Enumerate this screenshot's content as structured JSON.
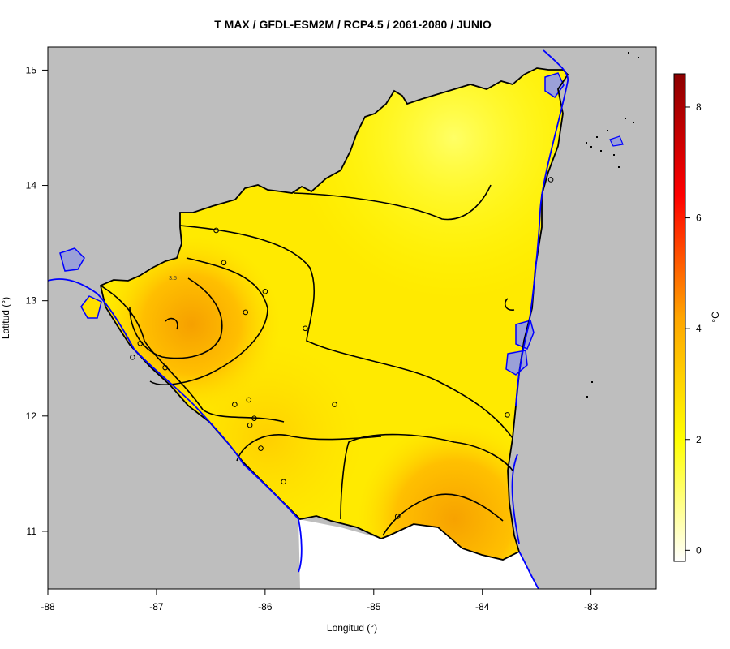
{
  "chart_data": {
    "type": "heatmap",
    "title": "T MAX / GFDL-ESM2M / RCP4.5 / 2061-2080 / JUNIO",
    "xlabel": "Longitud (°)",
    "ylabel": "Latitud (°)",
    "xlim": [
      -88,
      -82.4
    ],
    "ylim": [
      10.5,
      15.2
    ],
    "x_ticks": [
      "-88",
      "-87",
      "-86",
      "-85",
      "-84",
      "-83"
    ],
    "x_tick_values": [
      -88,
      -87,
      -86,
      -85,
      -84,
      -83
    ],
    "y_ticks": [
      "11",
      "12",
      "13",
      "14",
      "15"
    ],
    "y_tick_values": [
      11,
      12,
      13,
      14,
      15
    ],
    "colorbar": {
      "label": "°C",
      "range": [
        -0.2,
        8.6
      ],
      "ticks": [
        "0",
        "2",
        "4",
        "6",
        "8"
      ],
      "tick_values": [
        0,
        2,
        4,
        6,
        8
      ],
      "colors": [
        "#ffffff",
        "#ffff00",
        "#ffa500",
        "#ff0000",
        "#8b0000"
      ]
    },
    "contour_labels": [
      {
        "text": "3.5",
        "lon": -86.85,
        "lat": 13.18
      }
    ],
    "stations": [
      {
        "lon": -86.45,
        "lat": 13.61
      },
      {
        "lon": -86.38,
        "lat": 13.33
      },
      {
        "lon": -86.0,
        "lat": 13.08
      },
      {
        "lon": -86.18,
        "lat": 12.9
      },
      {
        "lon": -85.63,
        "lat": 12.76
      },
      {
        "lon": -87.15,
        "lat": 12.63
      },
      {
        "lon": -87.22,
        "lat": 12.51
      },
      {
        "lon": -86.92,
        "lat": 12.42
      },
      {
        "lon": -86.28,
        "lat": 12.1
      },
      {
        "lon": -86.15,
        "lat": 12.14
      },
      {
        "lon": -85.36,
        "lat": 12.1
      },
      {
        "lon": -86.1,
        "lat": 11.98
      },
      {
        "lon": -86.14,
        "lat": 11.92
      },
      {
        "lon": -86.04,
        "lat": 11.72
      },
      {
        "lon": -85.83,
        "lat": 11.43
      },
      {
        "lon": -84.78,
        "lat": 11.13
      },
      {
        "lon": -83.77,
        "lat": 12.01
      },
      {
        "lon": -83.37,
        "lat": 14.05
      }
    ]
  },
  "colors": {
    "land": "#bebebe",
    "water": "#9aa0d8",
    "coast": "#0000ff",
    "border": "#000000"
  }
}
